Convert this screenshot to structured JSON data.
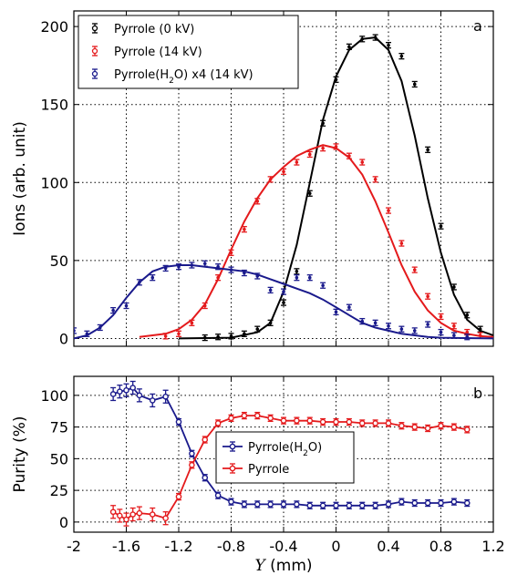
{
  "chart_data": [
    {
      "type": "scatter",
      "panel_label": "a",
      "ylabel": "Ions (arb. unit)",
      "xlim": [
        -2,
        1.2
      ],
      "ylim": [
        -5,
        210
      ],
      "yticks": [
        0,
        50,
        100,
        150,
        200
      ],
      "grid": true,
      "legend_position": "top-left",
      "series": [
        {
          "name": "Pyrrole (0 kV)",
          "color": "#000000",
          "points": [
            [
              -1.0,
              0.5
            ],
            [
              -0.9,
              1
            ],
            [
              -0.8,
              1.5
            ],
            [
              -0.7,
              3
            ],
            [
              -0.6,
              6
            ],
            [
              -0.5,
              10
            ],
            [
              -0.4,
              23
            ],
            [
              -0.3,
              43
            ],
            [
              -0.2,
              93
            ],
            [
              -0.1,
              138
            ],
            [
              0.0,
              166
            ],
            [
              0.1,
              187
            ],
            [
              0.2,
              192
            ],
            [
              0.3,
              193
            ],
            [
              0.4,
              188
            ],
            [
              0.5,
              181
            ],
            [
              0.6,
              163
            ],
            [
              0.7,
              121
            ],
            [
              0.8,
              72
            ],
            [
              0.9,
              33
            ],
            [
              1.0,
              15
            ],
            [
              1.1,
              6
            ]
          ],
          "fit": [
            [
              -1.2,
              0
            ],
            [
              -0.8,
              0.5
            ],
            [
              -0.6,
              4
            ],
            [
              -0.5,
              10
            ],
            [
              -0.4,
              30
            ],
            [
              -0.3,
              60
            ],
            [
              -0.2,
              100
            ],
            [
              -0.1,
              140
            ],
            [
              0.0,
              168
            ],
            [
              0.1,
              185
            ],
            [
              0.2,
              192
            ],
            [
              0.3,
              193
            ],
            [
              0.4,
              185
            ],
            [
              0.5,
              165
            ],
            [
              0.6,
              130
            ],
            [
              0.7,
              90
            ],
            [
              0.8,
              55
            ],
            [
              0.9,
              28
            ],
            [
              1.0,
              12
            ],
            [
              1.1,
              5
            ],
            [
              1.2,
              2
            ]
          ]
        },
        {
          "name": "Pyrrole (14 kV)",
          "color": "#e41a1c",
          "points": [
            [
              -1.3,
              1.5
            ],
            [
              -1.2,
              3
            ],
            [
              -1.1,
              10
            ],
            [
              -1.0,
              21
            ],
            [
              -0.9,
              39
            ],
            [
              -0.8,
              55
            ],
            [
              -0.7,
              70
            ],
            [
              -0.6,
              88
            ],
            [
              -0.5,
              102
            ],
            [
              -0.4,
              107
            ],
            [
              -0.3,
              113
            ],
            [
              -0.2,
              118
            ],
            [
              -0.1,
              122
            ],
            [
              0.0,
              123
            ],
            [
              0.1,
              117
            ],
            [
              0.2,
              113
            ],
            [
              0.3,
              102
            ],
            [
              0.4,
              82
            ],
            [
              0.5,
              61
            ],
            [
              0.6,
              44
            ],
            [
              0.7,
              27
            ],
            [
              0.8,
              14
            ],
            [
              0.9,
              8
            ],
            [
              1.0,
              4
            ],
            [
              1.1,
              2
            ]
          ],
          "fit": [
            [
              -1.5,
              1
            ],
            [
              -1.3,
              3
            ],
            [
              -1.2,
              6
            ],
            [
              -1.1,
              12
            ],
            [
              -1.0,
              22
            ],
            [
              -0.9,
              38
            ],
            [
              -0.8,
              57
            ],
            [
              -0.7,
              75
            ],
            [
              -0.6,
              90
            ],
            [
              -0.5,
              102
            ],
            [
              -0.4,
              110
            ],
            [
              -0.3,
              117
            ],
            [
              -0.2,
              121
            ],
            [
              -0.1,
              124
            ],
            [
              0.0,
              122
            ],
            [
              0.1,
              116
            ],
            [
              0.2,
              105
            ],
            [
              0.3,
              88
            ],
            [
              0.4,
              68
            ],
            [
              0.5,
              47
            ],
            [
              0.6,
              30
            ],
            [
              0.7,
              18
            ],
            [
              0.8,
              10
            ],
            [
              0.9,
              5
            ],
            [
              1.0,
              3
            ],
            [
              1.1,
              1.5
            ],
            [
              1.2,
              1
            ]
          ]
        },
        {
          "name": "Pyrrole(H<sub>2</sub>O) x4 (14 kV)",
          "legend_parts": [
            "Pyrrole(H",
            "2",
            "O) x4 (14 kV)"
          ],
          "color": "#1a1a8c",
          "points": [
            [
              -2.0,
              5
            ],
            [
              -1.9,
              3
            ],
            [
              -1.8,
              7
            ],
            [
              -1.7,
              18
            ],
            [
              -1.6,
              21
            ],
            [
              -1.5,
              36
            ],
            [
              -1.4,
              39
            ],
            [
              -1.3,
              45
            ],
            [
              -1.2,
              46
            ],
            [
              -1.1,
              47
            ],
            [
              -1.0,
              48
            ],
            [
              -0.9,
              46
            ],
            [
              -0.8,
              44
            ],
            [
              -0.7,
              42
            ],
            [
              -0.6,
              40
            ],
            [
              -0.5,
              31
            ],
            [
              -0.4,
              30
            ],
            [
              -0.3,
              39
            ],
            [
              -0.2,
              39
            ],
            [
              -0.1,
              34
            ],
            [
              0.0,
              17
            ],
            [
              0.1,
              20
            ],
            [
              0.2,
              11
            ],
            [
              0.3,
              10
            ],
            [
              0.4,
              8
            ],
            [
              0.5,
              6
            ],
            [
              0.6,
              5
            ],
            [
              0.7,
              9
            ],
            [
              0.8,
              4
            ],
            [
              0.9,
              2
            ],
            [
              1.0,
              1
            ]
          ],
          "fit": [
            [
              -2.0,
              0
            ],
            [
              -1.9,
              2
            ],
            [
              -1.8,
              7
            ],
            [
              -1.7,
              15
            ],
            [
              -1.6,
              26
            ],
            [
              -1.5,
              36
            ],
            [
              -1.4,
              43
            ],
            [
              -1.3,
              46
            ],
            [
              -1.2,
              47
            ],
            [
              -1.1,
              47
            ],
            [
              -1.0,
              46
            ],
            [
              -0.9,
              45
            ],
            [
              -0.8,
              44
            ],
            [
              -0.7,
              43
            ],
            [
              -0.6,
              41
            ],
            [
              -0.5,
              38
            ],
            [
              -0.4,
              35
            ],
            [
              -0.3,
              32
            ],
            [
              -0.2,
              29
            ],
            [
              -0.1,
              25
            ],
            [
              0.0,
              20
            ],
            [
              0.1,
              15
            ],
            [
              0.2,
              10
            ],
            [
              0.3,
              7
            ],
            [
              0.4,
              5
            ],
            [
              0.5,
              3
            ],
            [
              0.6,
              2
            ],
            [
              0.7,
              1
            ],
            [
              0.8,
              0.5
            ],
            [
              1.2,
              0
            ]
          ]
        }
      ]
    },
    {
      "type": "line",
      "panel_label": "b",
      "xlabel_italic": "Y",
      "xlabel_rest": " (mm)",
      "ylabel": "Purity (%)",
      "xlim": [
        -2,
        1.2
      ],
      "ylim": [
        -8,
        115
      ],
      "xticks": [
        "-2",
        "-1.6",
        "-1.2",
        "-0.8",
        "-0.4",
        "0",
        "0.4",
        "0.8",
        "1.2"
      ],
      "yticks": [
        0,
        25,
        50,
        75,
        100
      ],
      "grid": true,
      "legend_position": "center",
      "series": [
        {
          "name": "Pyrrole(H<sub>2</sub>O)",
          "legend_parts": [
            "Pyrrole(H",
            "2",
            "O)"
          ],
          "color": "#1a1a8c",
          "x": [
            -1.7,
            -1.65,
            -1.6,
            -1.55,
            -1.5,
            -1.4,
            -1.3,
            -1.2,
            -1.1,
            -1.0,
            -0.9,
            -0.8,
            -0.7,
            -0.6,
            -0.5,
            -0.4,
            -0.3,
            -0.2,
            -0.1,
            0.0,
            0.1,
            0.2,
            0.3,
            0.4,
            0.5,
            0.6,
            0.7,
            0.8,
            0.9,
            1.0
          ],
          "y": [
            101,
            103,
            104,
            106,
            100,
            96,
            99,
            79,
            54,
            35,
            21,
            16,
            14,
            14,
            14,
            14,
            14,
            13,
            13,
            13,
            13,
            13,
            13,
            14,
            16,
            15,
            15,
            15,
            16,
            15
          ]
        },
        {
          "name": "Pyrrole",
          "color": "#e41a1c",
          "x": [
            -1.7,
            -1.65,
            -1.6,
            -1.55,
            -1.5,
            -1.4,
            -1.3,
            -1.2,
            -1.1,
            -1.0,
            -0.9,
            -0.8,
            -0.7,
            -0.6,
            -0.5,
            -0.4,
            -0.3,
            -0.2,
            -0.1,
            0.0,
            0.1,
            0.2,
            0.3,
            0.4,
            0.5,
            0.6,
            0.7,
            0.8,
            0.9,
            1.0
          ],
          "y": [
            8,
            5,
            2,
            6,
            7,
            6,
            3,
            20,
            45,
            65,
            78,
            82,
            84,
            84,
            82,
            80,
            80,
            80,
            79,
            79,
            79,
            78,
            78,
            78,
            76,
            75,
            74,
            76,
            75,
            73
          ]
        }
      ]
    }
  ]
}
